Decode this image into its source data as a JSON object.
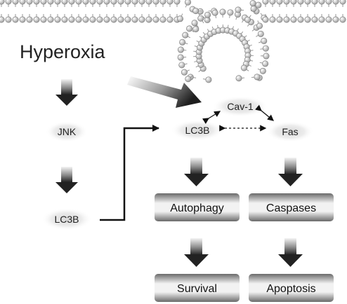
{
  "diagram": {
    "stimulus": "Hyperoxia",
    "left_pathway": [
      "JNK",
      "LC3B"
    ],
    "membrane_protein": "Cav-1",
    "interactors": {
      "left": "LC3B",
      "right": "Fas"
    },
    "outcome_boxes": {
      "autophagy": "Autophagy",
      "caspases": "Caspases",
      "survival": "Survival",
      "apoptosis": "Apoptosis"
    }
  }
}
